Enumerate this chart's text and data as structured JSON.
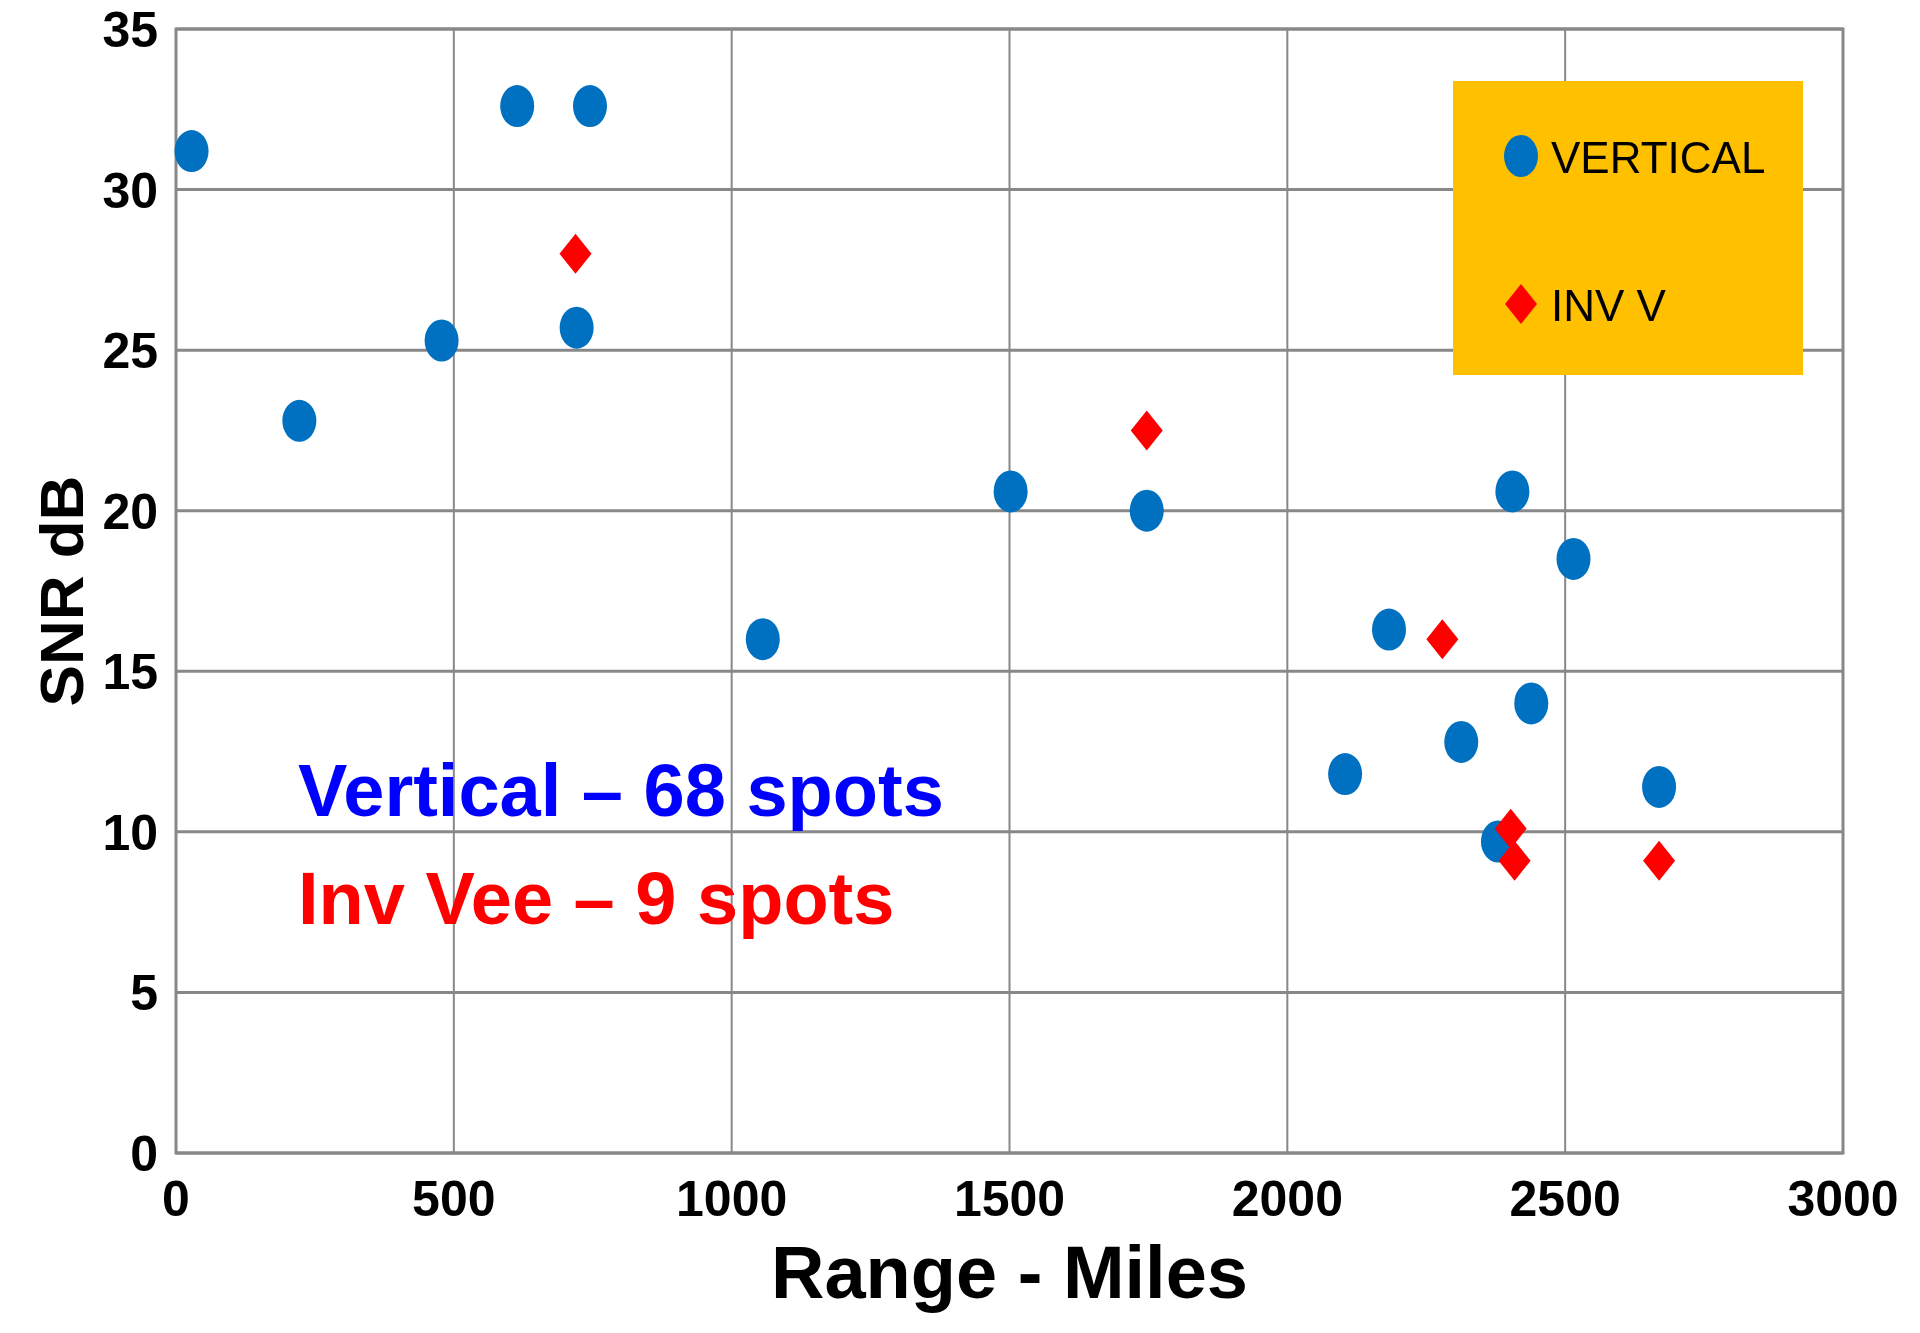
{
  "chart_data": {
    "type": "scatter",
    "xlabel": "Range - Miles",
    "ylabel": "SNR dB",
    "xlim": [
      0,
      3000
    ],
    "xticks": [
      0,
      500,
      1000,
      1500,
      2000,
      2500,
      3000
    ],
    "ylim": [
      0,
      35
    ],
    "yticks": [
      0,
      5,
      10,
      15,
      20,
      25,
      30,
      35
    ],
    "grid": true,
    "legend": "top right",
    "series": [
      {
        "name": "VERTICAL",
        "color": "#0070c0",
        "marker": "circle",
        "x": [
          28,
          222,
          478,
          614,
          745,
          721,
          1056,
          1502,
          1747,
          2104,
          2183,
          2313,
          2379,
          2405,
          2439,
          2515,
          2669
        ],
        "values": [
          31.2,
          22.8,
          25.3,
          32.6,
          32.6,
          25.7,
          16.0,
          20.6,
          20.0,
          11.8,
          16.3,
          12.8,
          9.7,
          20.6,
          14.0,
          18.5,
          11.4
        ]
      },
      {
        "name": "INV V",
        "color": "#ff0000",
        "marker": "diamond",
        "x": [
          719,
          1747,
          2279,
          2402,
          2409,
          2669
        ],
        "values": [
          28.0,
          22.5,
          16.0,
          10.1,
          9.1,
          9.1
        ]
      }
    ],
    "annotations": [
      "Vertical – 68 spots",
      "Inv Vee – 9 spots"
    ]
  }
}
